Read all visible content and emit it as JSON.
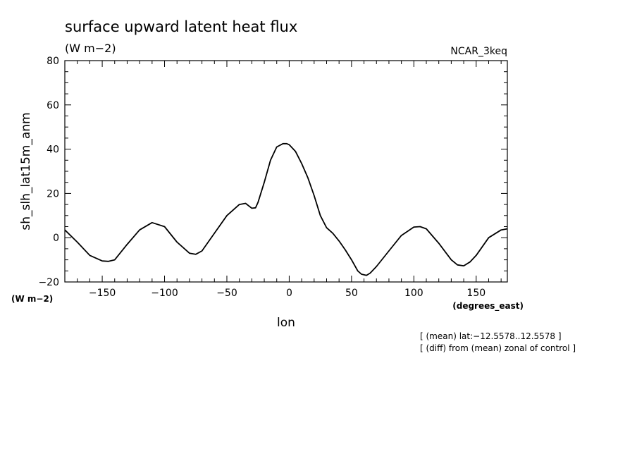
{
  "chart_data": {
    "type": "line",
    "title": "surface upward latent heat flux",
    "subtitle": "(W m−2)",
    "model_label": "NCAR_3keq",
    "xlabel": "lon",
    "xunit": "(degrees_east)",
    "ylabel": "sh_slh_lat15m_anm",
    "yunit": "(W m−2)",
    "xlim": [
      -180,
      175
    ],
    "ylim": [
      -20,
      80
    ],
    "xticks": [
      -150,
      -100,
      -50,
      0,
      50,
      100,
      150
    ],
    "xtick_labels": [
      "−150",
      "−100",
      "−50",
      "0",
      "50",
      "100",
      "150"
    ],
    "yticks": [
      -20,
      0,
      20,
      40,
      60,
      80
    ],
    "ytick_labels": [
      "−20",
      "0",
      "20",
      "40",
      "60",
      "80"
    ],
    "notes": [
      "[ (mean) lat:−12.5578..12.5578 ]",
      "[ (diff) from (mean) zonal of control ]"
    ],
    "grid": false,
    "series": [
      {
        "x": [
          -180,
          -170,
          -160,
          -150,
          -145,
          -140,
          -130,
          -120,
          -110,
          -100,
          -90,
          -80,
          -75,
          -70,
          -60,
          -50,
          -40,
          -35,
          -30,
          -27,
          -25,
          -20,
          -15,
          -10,
          -5,
          -2,
          0,
          5,
          10,
          15,
          20,
          25,
          30,
          35,
          40,
          45,
          50,
          55,
          58,
          62,
          65,
          70,
          80,
          90,
          100,
          105,
          110,
          120,
          130,
          135,
          140,
          145,
          150,
          160,
          170,
          175
        ],
        "y": [
          3.5,
          -2,
          -8,
          -10.5,
          -10.7,
          -10,
          -3,
          3.5,
          6.8,
          5,
          -2,
          -7,
          -7.5,
          -6,
          2,
          10,
          15,
          15.5,
          13.3,
          13.5,
          16,
          25,
          35,
          41,
          42.5,
          42.5,
          42,
          39,
          33.5,
          27,
          19,
          10,
          4.5,
          2,
          -1.5,
          -5.5,
          -10,
          -15,
          -16.5,
          -17,
          -16,
          -13,
          -6,
          1,
          4.8,
          5,
          4,
          -2.5,
          -10,
          -12.3,
          -12.7,
          -11,
          -8,
          0,
          3.5,
          4
        ]
      }
    ]
  }
}
